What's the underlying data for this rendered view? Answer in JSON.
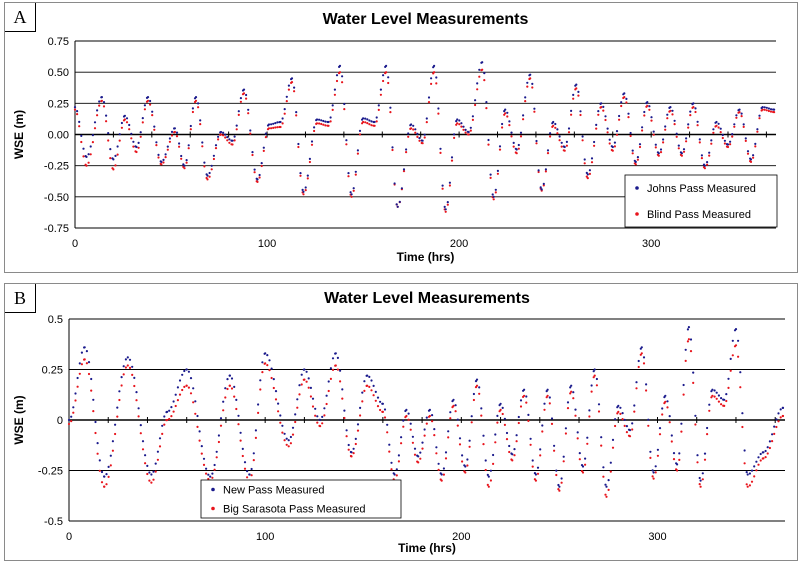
{
  "chart_data": [
    {
      "panel": "A",
      "type": "scatter",
      "title": "Water Level Measurements",
      "xlabel": "Time (hrs)",
      "ylabel": "WSE (m)",
      "xlim": [
        0,
        365
      ],
      "ylim": [
        -0.75,
        0.75
      ],
      "xticks": [
        0,
        100,
        200,
        300
      ],
      "yticks": [
        -0.75,
        -0.5,
        -0.25,
        0.0,
        0.25,
        0.5,
        0.75
      ],
      "ytick_labels": [
        "-0.75",
        "-0.50",
        "-0.25",
        "0.00",
        "0.25",
        "0.50",
        "0.75"
      ],
      "grid": true,
      "legend_position": "bottom-right",
      "series": [
        {
          "name": "Johns Pass Measured",
          "color": "#1a1a8c",
          "x": [
            0,
            6,
            14,
            20,
            26,
            32,
            38,
            45,
            52,
            57,
            63,
            69,
            76,
            82,
            88,
            95,
            101,
            107,
            113,
            119,
            126,
            132,
            138,
            144,
            150,
            156,
            162,
            168,
            175,
            181,
            187,
            193,
            199,
            205,
            212,
            218,
            224,
            230,
            237,
            243,
            249,
            255,
            261,
            267,
            274,
            280,
            286,
            292,
            298,
            304,
            310,
            316,
            322,
            328,
            334,
            340,
            346,
            352,
            358,
            364
          ],
          "y": [
            0.22,
            -0.18,
            0.3,
            -0.2,
            0.15,
            -0.1,
            0.3,
            -0.22,
            0.05,
            -0.25,
            0.3,
            -0.33,
            0.02,
            -0.05,
            0.36,
            -0.36,
            0.08,
            0.1,
            0.45,
            -0.46,
            0.12,
            0.1,
            0.55,
            -0.48,
            0.13,
            0.1,
            0.55,
            -0.58,
            0.08,
            -0.05,
            0.55,
            -0.6,
            0.12,
            0.02,
            0.58,
            -0.5,
            0.2,
            -0.12,
            0.48,
            -0.44,
            0.1,
            -0.1,
            0.4,
            -0.32,
            0.25,
            -0.1,
            0.33,
            -0.22,
            0.26,
            -0.15,
            0.22,
            -0.15,
            0.25,
            -0.25,
            0.1,
            -0.08,
            0.2,
            -0.2,
            0.22,
            0.2
          ]
        },
        {
          "name": "Blind Pass Measured",
          "color": "#e8141c",
          "x": [
            0,
            6,
            14,
            20,
            26,
            32,
            38,
            45,
            52,
            57,
            63,
            69,
            76,
            82,
            88,
            95,
            101,
            107,
            113,
            119,
            126,
            132,
            138,
            144,
            150,
            156,
            162,
            168,
            175,
            181,
            187,
            193,
            199,
            205,
            212,
            218,
            224,
            230,
            237,
            243,
            249,
            255,
            261,
            267,
            274,
            280,
            286,
            292,
            298,
            304,
            310,
            316,
            322,
            328,
            334,
            340,
            346,
            352,
            358,
            364
          ],
          "y": [
            0.2,
            -0.25,
            0.27,
            -0.28,
            0.12,
            -0.14,
            0.27,
            -0.24,
            0.02,
            -0.27,
            0.27,
            -0.36,
            0.0,
            -0.08,
            0.33,
            -0.38,
            0.05,
            0.06,
            0.42,
            -0.48,
            0.09,
            0.07,
            0.5,
            -0.5,
            0.1,
            0.07,
            0.5,
            -0.58,
            0.05,
            -0.07,
            0.5,
            -0.62,
            0.09,
            0.0,
            0.52,
            -0.52,
            0.17,
            -0.15,
            0.45,
            -0.45,
            0.07,
            -0.13,
            0.37,
            -0.35,
            0.22,
            -0.13,
            0.3,
            -0.24,
            0.23,
            -0.17,
            0.19,
            -0.17,
            0.22,
            -0.27,
            0.07,
            -0.1,
            0.18,
            -0.22,
            0.2,
            0.18
          ]
        }
      ]
    },
    {
      "panel": "B",
      "type": "scatter",
      "title": "Water Level Measurements",
      "xlabel": "Time (hrs)",
      "ylabel": "WSE (m)",
      "xlim": [
        0,
        365
      ],
      "ylim": [
        -0.5,
        0.5
      ],
      "xticks": [
        0,
        100,
        200,
        300
      ],
      "yticks": [
        -0.5,
        -0.25,
        0.0,
        0.25,
        0.5
      ],
      "ytick_labels": [
        "-0.5",
        "-0.25",
        "0",
        "0.25",
        "0.5"
      ],
      "grid": true,
      "legend_position": "bottom-left",
      "series": [
        {
          "name": "New Pass Measured",
          "color": "#1a1a8c",
          "x": [
            0,
            8,
            18,
            30,
            42,
            50,
            60,
            72,
            82,
            92,
            100,
            112,
            120,
            128,
            136,
            144,
            152,
            160,
            166,
            172,
            178,
            184,
            190,
            196,
            202,
            208,
            214,
            220,
            226,
            232,
            238,
            244,
            250,
            256,
            262,
            268,
            274,
            280,
            286,
            292,
            298,
            304,
            310,
            316,
            322,
            328,
            334,
            340,
            346,
            354,
            364
          ],
          "y": [
            0.0,
            0.36,
            -0.28,
            0.31,
            -0.27,
            0.04,
            0.25,
            -0.28,
            0.22,
            -0.27,
            0.33,
            -0.1,
            0.25,
            0.0,
            0.33,
            -0.16,
            0.22,
            0.08,
            -0.27,
            0.05,
            -0.18,
            0.05,
            -0.27,
            0.1,
            -0.23,
            0.2,
            -0.28,
            0.08,
            -0.17,
            0.15,
            -0.27,
            0.15,
            -0.33,
            0.17,
            -0.23,
            0.25,
            -0.33,
            0.07,
            -0.05,
            0.36,
            -0.26,
            0.12,
            -0.22,
            0.46,
            -0.3,
            0.15,
            0.1,
            0.45,
            -0.27,
            -0.16,
            0.06
          ]
        },
        {
          "name": "Big Sarasota Pass Measured",
          "color": "#e8141c",
          "x": [
            0,
            8,
            18,
            30,
            42,
            50,
            60,
            72,
            82,
            92,
            100,
            112,
            120,
            128,
            136,
            144,
            152,
            160,
            166,
            172,
            178,
            184,
            190,
            196,
            202,
            208,
            214,
            220,
            226,
            232,
            238,
            244,
            250,
            256,
            262,
            268,
            274,
            280,
            286,
            292,
            298,
            304,
            310,
            316,
            322,
            328,
            334,
            340,
            346,
            354,
            364
          ],
          "y": [
            -0.02,
            0.3,
            -0.33,
            0.27,
            -0.31,
            0.0,
            0.17,
            -0.3,
            0.17,
            -0.3,
            0.28,
            -0.13,
            0.2,
            -0.03,
            0.27,
            -0.18,
            0.17,
            0.04,
            -0.3,
            0.02,
            -0.21,
            0.02,
            -0.3,
            0.07,
            -0.26,
            0.17,
            -0.33,
            0.05,
            -0.2,
            0.12,
            -0.3,
            0.12,
            -0.35,
            0.14,
            -0.26,
            0.22,
            -0.38,
            0.04,
            -0.08,
            0.33,
            -0.29,
            0.09,
            -0.25,
            0.4,
            -0.33,
            0.12,
            0.07,
            0.37,
            -0.33,
            -0.19,
            0.02
          ]
        }
      ]
    }
  ]
}
